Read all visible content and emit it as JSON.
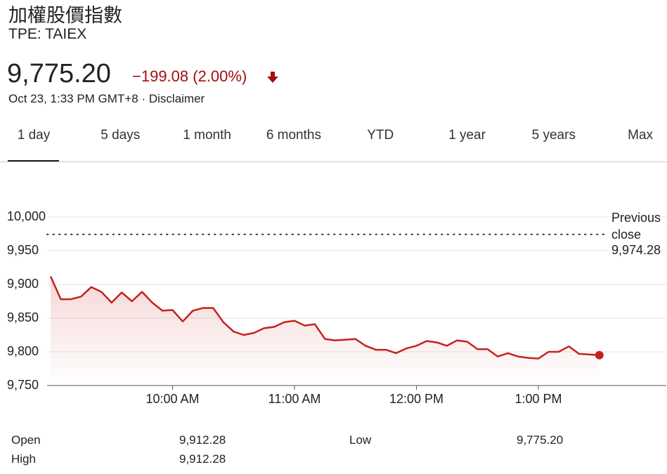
{
  "header": {
    "name": "加權股價指數",
    "ticker": "TPE: TAIEX",
    "price": "9,775.20",
    "change": "−199.08 (2.00%)",
    "timestamp": "Oct 23, 1:33 PM GMT+8",
    "separator": "·",
    "disclaimer": "Disclaimer"
  },
  "tabs": [
    "1 day",
    "5 days",
    "1 month",
    "6 months",
    "YTD",
    "1 year",
    "5 years",
    "Max"
  ],
  "chart_data": {
    "type": "line",
    "color": "#c5221f",
    "x": [
      540,
      545,
      550,
      555,
      560,
      565,
      570,
      575,
      580,
      585,
      590,
      595,
      600,
      605,
      610,
      615,
      620,
      625,
      630,
      635,
      640,
      645,
      650,
      655,
      660,
      665,
      670,
      675,
      680,
      685,
      690,
      695,
      700,
      705,
      710,
      715,
      720,
      725,
      730,
      735,
      740,
      745,
      750,
      755,
      760,
      765,
      770,
      775,
      780,
      785,
      790,
      795,
      800,
      805,
      810
    ],
    "values": [
      9912,
      9878,
      9878,
      9882,
      9896,
      9889,
      9873,
      9888,
      9875,
      9889,
      9873,
      9861,
      9862,
      9845,
      9861,
      9865,
      9865,
      9844,
      9830,
      9825,
      9828,
      9835,
      9837,
      9844,
      9846,
      9839,
      9841,
      9819,
      9817,
      9818,
      9819,
      9809,
      9803,
      9803,
      9798,
      9805,
      9809,
      9816,
      9814,
      9809,
      9817,
      9815,
      9804,
      9804,
      9793,
      9798,
      9793,
      9791,
      9790,
      9800,
      9800,
      9808,
      9797,
      9796,
      9795
    ],
    "xlim": [
      540,
      842
    ],
    "xticks": [
      {
        "value": 600,
        "label": "10:00 AM"
      },
      {
        "value": 660,
        "label": "11:00 AM"
      },
      {
        "value": 720,
        "label": "12:00 PM"
      },
      {
        "value": 780,
        "label": "1:00 PM"
      }
    ],
    "ylim": [
      9750,
      10000
    ],
    "yticks": [
      {
        "value": 9750,
        "label": "9,750"
      },
      {
        "value": 9800,
        "label": "9,800"
      },
      {
        "value": 9850,
        "label": "9,850"
      },
      {
        "value": 9900,
        "label": "9,900"
      },
      {
        "value": 9950,
        "label": "9,950"
      },
      {
        "value": 10000,
        "label": "10,000"
      }
    ],
    "grid": true,
    "reference_line": {
      "name": "Previous close",
      "value": 9974.28,
      "value_label": "9,974.28"
    }
  },
  "stats": {
    "rows": [
      [
        "Open",
        "9,912.28"
      ],
      [
        "High",
        "9,912.28"
      ],
      [
        "Low",
        "9,775.20"
      ]
    ]
  }
}
